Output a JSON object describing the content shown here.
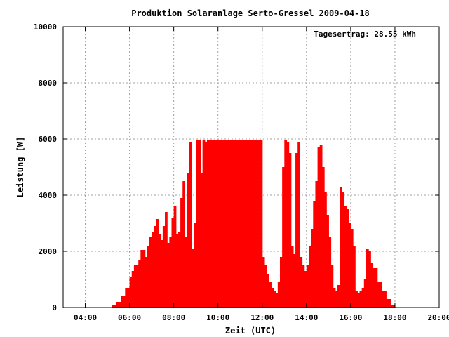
{
  "chart_data": {
    "type": "area",
    "title": "Produktion Solaranlage Serto-Gressel 2009-04-18",
    "xlabel": "Zeit (UTC)",
    "ylabel": "Leistung [W]",
    "annotation": "Tagesertrag: 28.55 kWh",
    "xlim": [
      3,
      20
    ],
    "ylim": [
      0,
      10000
    ],
    "x_tick_values": [
      4,
      6,
      8,
      10,
      12,
      14,
      16,
      18,
      20
    ],
    "x_tick_labels": [
      "04:00",
      "06:00",
      "08:00",
      "10:00",
      "12:00",
      "14:00",
      "16:00",
      "18:00",
      "20:00"
    ],
    "y_tick_values": [
      0,
      2000,
      4000,
      6000,
      8000,
      10000
    ],
    "y_tick_labels": [
      "0",
      "2000",
      "4000",
      "6000",
      "8000",
      "10000"
    ],
    "grid": true,
    "color": "#ff0000",
    "series": [
      {
        "x": [
          5.0,
          5.2,
          5.4,
          5.6,
          5.8,
          6.0,
          6.1,
          6.2,
          6.4,
          6.5,
          6.7,
          6.8,
          6.9,
          7.0,
          7.1,
          7.2,
          7.3,
          7.4,
          7.5,
          7.6,
          7.7,
          7.8,
          7.9,
          8.0,
          8.1,
          8.2,
          8.3,
          8.4,
          8.5,
          8.6,
          8.7,
          8.8,
          8.9,
          9.0,
          9.1,
          9.2,
          9.3,
          9.4,
          9.5,
          9.6,
          9.7,
          9.8,
          9.9,
          10.0,
          10.2,
          10.4,
          10.6,
          10.7,
          10.8,
          10.9,
          11.0,
          11.2,
          11.4,
          11.6,
          11.8,
          12.0,
          12.1,
          12.2,
          12.3,
          12.4,
          12.5,
          12.6,
          12.7,
          12.8,
          12.9,
          13.0,
          13.1,
          13.2,
          13.3,
          13.4,
          13.5,
          13.6,
          13.7,
          13.8,
          13.9,
          14.0,
          14.1,
          14.2,
          14.3,
          14.4,
          14.5,
          14.6,
          14.7,
          14.8,
          14.9,
          15.0,
          15.1,
          15.2,
          15.3,
          15.4,
          15.5,
          15.6,
          15.7,
          15.8,
          15.9,
          16.0,
          16.1,
          16.2,
          16.3,
          16.4,
          16.5,
          16.6,
          16.7,
          16.8,
          16.9,
          17.0,
          17.2,
          17.4,
          17.6,
          17.8,
          18.0
        ],
        "y": [
          0,
          100,
          200,
          400,
          700,
          1100,
          1300,
          1500,
          1700,
          2050,
          1800,
          2200,
          2500,
          2700,
          2900,
          3150,
          2600,
          2400,
          2900,
          3400,
          2300,
          2500,
          3200,
          3600,
          2600,
          2700,
          3900,
          4500,
          2500,
          4800,
          5900,
          2100,
          3000,
          5950,
          5950,
          4800,
          5950,
          5900,
          5950,
          5950,
          5950,
          5950,
          5950,
          5950,
          5950,
          5950,
          5950,
          5950,
          5950,
          5950,
          5950,
          5950,
          5950,
          5950,
          5950,
          1800,
          1500,
          1200,
          900,
          700,
          600,
          500,
          900,
          1800,
          5000,
          5950,
          5900,
          5500,
          2200,
          1900,
          5500,
          5900,
          1800,
          1500,
          1300,
          1500,
          2200,
          2800,
          3800,
          4500,
          5700,
          5800,
          5000,
          4100,
          3300,
          2500,
          1500,
          700,
          600,
          800,
          4300,
          4100,
          3600,
          3500,
          3000,
          2800,
          2200,
          600,
          500,
          600,
          700,
          1000,
          2100,
          2000,
          1600,
          1400,
          900,
          600,
          300,
          100,
          0
        ]
      }
    ]
  }
}
